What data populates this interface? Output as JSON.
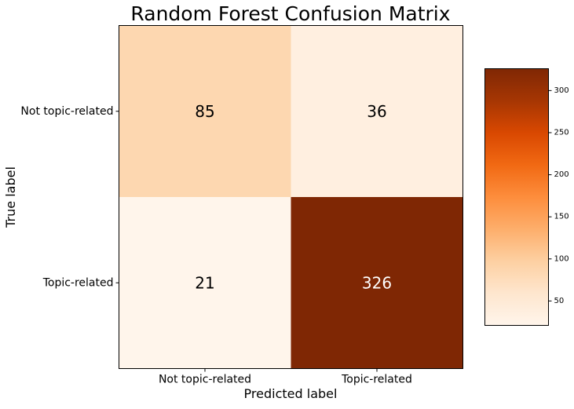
{
  "chart_data": {
    "type": "heatmap",
    "title": "Random Forest Confusion Matrix",
    "xlabel": "Predicted label",
    "ylabel": "True label",
    "x_categories": [
      "Not topic-related",
      "Topic-related"
    ],
    "y_categories": [
      "Not topic-related",
      "Topic-related"
    ],
    "values": [
      [
        85,
        36
      ],
      [
        21,
        326
      ]
    ],
    "colormap": "Oranges",
    "colorbar": {
      "range": [
        21,
        326
      ],
      "ticks": [
        50,
        100,
        150,
        200,
        250,
        300
      ]
    },
    "grid": false
  }
}
